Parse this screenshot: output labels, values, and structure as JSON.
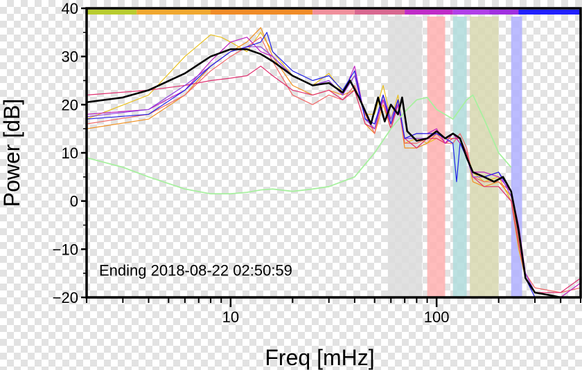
{
  "chart_data": {
    "type": "line",
    "xlabel": "Freq [mHz]",
    "ylabel": "Power [dB]",
    "x_scale": "log",
    "xlim": [
      2,
      500
    ],
    "ylim": [
      -20,
      40
    ],
    "x_tick_labels": [
      {
        "value": 10,
        "label": "10"
      },
      {
        "value": 100,
        "label": "100"
      }
    ],
    "y_ticks": [
      {
        "value": 40,
        "label": "40"
      },
      {
        "value": 30,
        "label": "30"
      },
      {
        "value": 20,
        "label": "20"
      },
      {
        "value": 10,
        "label": "10"
      },
      {
        "value": 0,
        "label": "0"
      },
      {
        "value": -10,
        "label": "−10"
      },
      {
        "value": -20,
        "label": "−20"
      }
    ],
    "annotation": "Ending 2018-08-22 02:50:59",
    "bands": [
      {
        "x0": 58,
        "x1": 85,
        "color": "#dcdcdc"
      },
      {
        "x0": 90,
        "x1": 110,
        "color": "#ffb0b0"
      },
      {
        "x0": 120,
        "x1": 140,
        "color": "#b0dcdc"
      },
      {
        "x0": 145,
        "x1": 200,
        "color": "#d8d8b0"
      },
      {
        "x0": 230,
        "x1": 260,
        "color": "#b0b0ff"
      }
    ],
    "top_strip": [
      {
        "x0": 2,
        "x1": 3.5,
        "color": "#b8cc30"
      },
      {
        "x0": 3.5,
        "x1": 8,
        "color": "#f0a830"
      },
      {
        "x0": 8,
        "x1": 25,
        "color": "#f08c28"
      },
      {
        "x0": 25,
        "x1": 40,
        "color": "#f0909c"
      },
      {
        "x0": 40,
        "x1": 70,
        "color": "#d86890"
      },
      {
        "x0": 70,
        "x1": 120,
        "color": "#c02cc8"
      },
      {
        "x0": 120,
        "x1": 180,
        "color": "#b040e8"
      },
      {
        "x0": 180,
        "x1": 250,
        "color": "#a030e0"
      },
      {
        "x0": 250,
        "x1": 500,
        "color": "#2020ff"
      }
    ],
    "series": [
      {
        "color": "#000000",
        "width": 2.6,
        "x": [
          2,
          3,
          4,
          6,
          8,
          10,
          12,
          14,
          16,
          20,
          25,
          30,
          35,
          38,
          42,
          48,
          52,
          56,
          60,
          65,
          68,
          72,
          80,
          90,
          100,
          110,
          120,
          130,
          140,
          150,
          170,
          190,
          210,
          230,
          250,
          270,
          300,
          350,
          400,
          500
        ],
        "y": [
          20.5,
          21.5,
          23,
          26.5,
          30,
          31.5,
          31.5,
          30.5,
          29,
          26,
          24,
          24.5,
          22.5,
          25,
          21.5,
          16,
          21.5,
          16.5,
          20,
          18,
          21.5,
          14.5,
          12.5,
          13,
          14.5,
          13,
          14,
          13,
          9,
          6,
          5,
          4,
          5,
          2,
          -6,
          -16,
          -19,
          -19.5,
          -20,
          -20
        ]
      },
      {
        "color": "#e8c020",
        "width": 1.2,
        "x": [
          2,
          4,
          6,
          8,
          9,
          10,
          12,
          14,
          16,
          20,
          25,
          30,
          35,
          40,
          45,
          50,
          55,
          60,
          65,
          70,
          80,
          90,
          100,
          110,
          120,
          130,
          140,
          150,
          170,
          200,
          230,
          250,
          270,
          300,
          400,
          500
        ],
        "y": [
          17,
          22,
          30,
          34.5,
          34,
          33,
          31,
          35,
          31,
          26,
          24,
          26.5,
          22.5,
          26,
          18,
          18,
          24,
          17,
          22,
          12,
          13,
          12,
          13,
          12,
          14,
          12,
          10,
          6,
          4,
          5,
          0,
          -10,
          -16,
          -19,
          -20,
          -20
        ]
      },
      {
        "color": "#f09020",
        "width": 1.2,
        "x": [
          2,
          4,
          6,
          8,
          10,
          12,
          14,
          16,
          20,
          25,
          30,
          35,
          40,
          45,
          50,
          55,
          60,
          65,
          70,
          80,
          90,
          100,
          110,
          120,
          130,
          140,
          150,
          170,
          200,
          230,
          250,
          270,
          300,
          400,
          500
        ],
        "y": [
          15,
          17,
          22,
          28,
          31,
          33,
          36,
          30,
          24,
          22,
          23,
          22,
          23,
          16,
          14,
          20,
          15,
          21,
          11,
          11,
          12,
          14,
          13,
          13,
          13,
          10,
          4,
          3,
          4,
          1,
          -8,
          -15,
          -19,
          -20,
          -20
        ]
      },
      {
        "color": "#f06868",
        "width": 1.2,
        "x": [
          2,
          4,
          6,
          8,
          10,
          12,
          14,
          16,
          20,
          25,
          30,
          35,
          40,
          45,
          50,
          55,
          60,
          65,
          70,
          80,
          90,
          100,
          110,
          120,
          130,
          140,
          150,
          170,
          200,
          230,
          250,
          270,
          300,
          400,
          500
        ],
        "y": [
          16,
          18,
          22,
          27,
          30,
          32,
          34,
          29,
          22,
          20,
          22,
          21,
          24,
          18,
          14,
          22,
          16,
          20,
          12,
          12,
          13,
          14,
          12,
          12,
          14,
          11,
          5,
          4,
          4,
          2,
          -7,
          -15,
          -18,
          -19,
          -18
        ]
      },
      {
        "color": "#e03070",
        "width": 1.2,
        "x": [
          2,
          4,
          6,
          8,
          10,
          12,
          14,
          16,
          20,
          25,
          30,
          35,
          40,
          45,
          50,
          55,
          60,
          65,
          70,
          80,
          90,
          100,
          110,
          120,
          130,
          140,
          150,
          170,
          200,
          230,
          250,
          270,
          300,
          400,
          500
        ],
        "y": [
          22,
          23,
          24,
          25,
          25.5,
          26,
          28,
          26,
          23,
          22,
          23,
          21,
          23,
          16,
          15,
          21,
          15,
          20,
          13,
          11,
          13,
          13,
          12,
          13,
          13,
          10,
          5,
          3,
          3,
          0,
          -9,
          -16,
          -19,
          -19,
          -16
        ]
      },
      {
        "color": "#c020c0",
        "width": 1.2,
        "x": [
          2,
          4,
          6,
          8,
          10,
          12,
          14,
          16,
          20,
          25,
          30,
          35,
          40,
          45,
          50,
          55,
          60,
          65,
          70,
          80,
          90,
          100,
          110,
          120,
          130,
          140,
          150,
          170,
          200,
          230,
          250,
          270,
          300,
          400,
          500
        ],
        "y": [
          18,
          19,
          23,
          29,
          33,
          34,
          31,
          30,
          26,
          24,
          25,
          22,
          28,
          17,
          16,
          21,
          16,
          20,
          13,
          14,
          14,
          15,
          12,
          14,
          12,
          9,
          6,
          6,
          5,
          2,
          -5,
          -15,
          -19,
          -20,
          -17
        ]
      },
      {
        "color": "#9040e0",
        "width": 1.2,
        "x": [
          2,
          4,
          6,
          8,
          10,
          12,
          14,
          16,
          20,
          25,
          30,
          35,
          40,
          45,
          50,
          55,
          60,
          65,
          70,
          80,
          90,
          100,
          110,
          120,
          130,
          140,
          150,
          170,
          200,
          230,
          250,
          270,
          300,
          400,
          500
        ],
        "y": [
          17.5,
          19,
          24,
          28,
          31,
          32,
          32,
          30,
          26,
          24,
          25,
          22,
          26,
          17,
          15,
          22,
          17,
          21,
          13,
          13,
          13,
          14,
          13,
          14,
          13,
          9,
          5,
          5,
          6,
          1,
          -6,
          -15,
          -19,
          -20,
          -20
        ]
      },
      {
        "color": "#2020e8",
        "width": 1.2,
        "x": [
          2,
          4,
          6,
          8,
          10,
          12,
          14,
          15,
          16,
          20,
          25,
          30,
          35,
          40,
          45,
          50,
          55,
          60,
          65,
          70,
          80,
          90,
          100,
          110,
          120,
          125,
          130,
          140,
          150,
          170,
          200,
          230,
          250,
          270,
          300,
          400,
          500
        ],
        "y": [
          17,
          18,
          23,
          28,
          31,
          32,
          33,
          35,
          31,
          27,
          25,
          26,
          23,
          27,
          17,
          16,
          22,
          16,
          21,
          13,
          14,
          14,
          14,
          13,
          12,
          4,
          12,
          9,
          6,
          5,
          6,
          2,
          -7,
          -16,
          -20,
          -20,
          -20
        ]
      },
      {
        "color": "#a8f0a0",
        "width": 1.8,
        "x": [
          2,
          3,
          4,
          6,
          8,
          10,
          12,
          14,
          16,
          20,
          25,
          30,
          40,
          50,
          60,
          70,
          80,
          90,
          100,
          120,
          140,
          150,
          170,
          200,
          230
        ],
        "y": [
          9,
          7,
          5,
          2.5,
          1.5,
          1.5,
          1.8,
          2.3,
          2.5,
          2,
          2.5,
          3,
          5,
          10,
          15,
          18.5,
          21,
          21.5,
          19,
          17,
          21,
          22,
          17,
          10,
          7
        ]
      }
    ]
  }
}
